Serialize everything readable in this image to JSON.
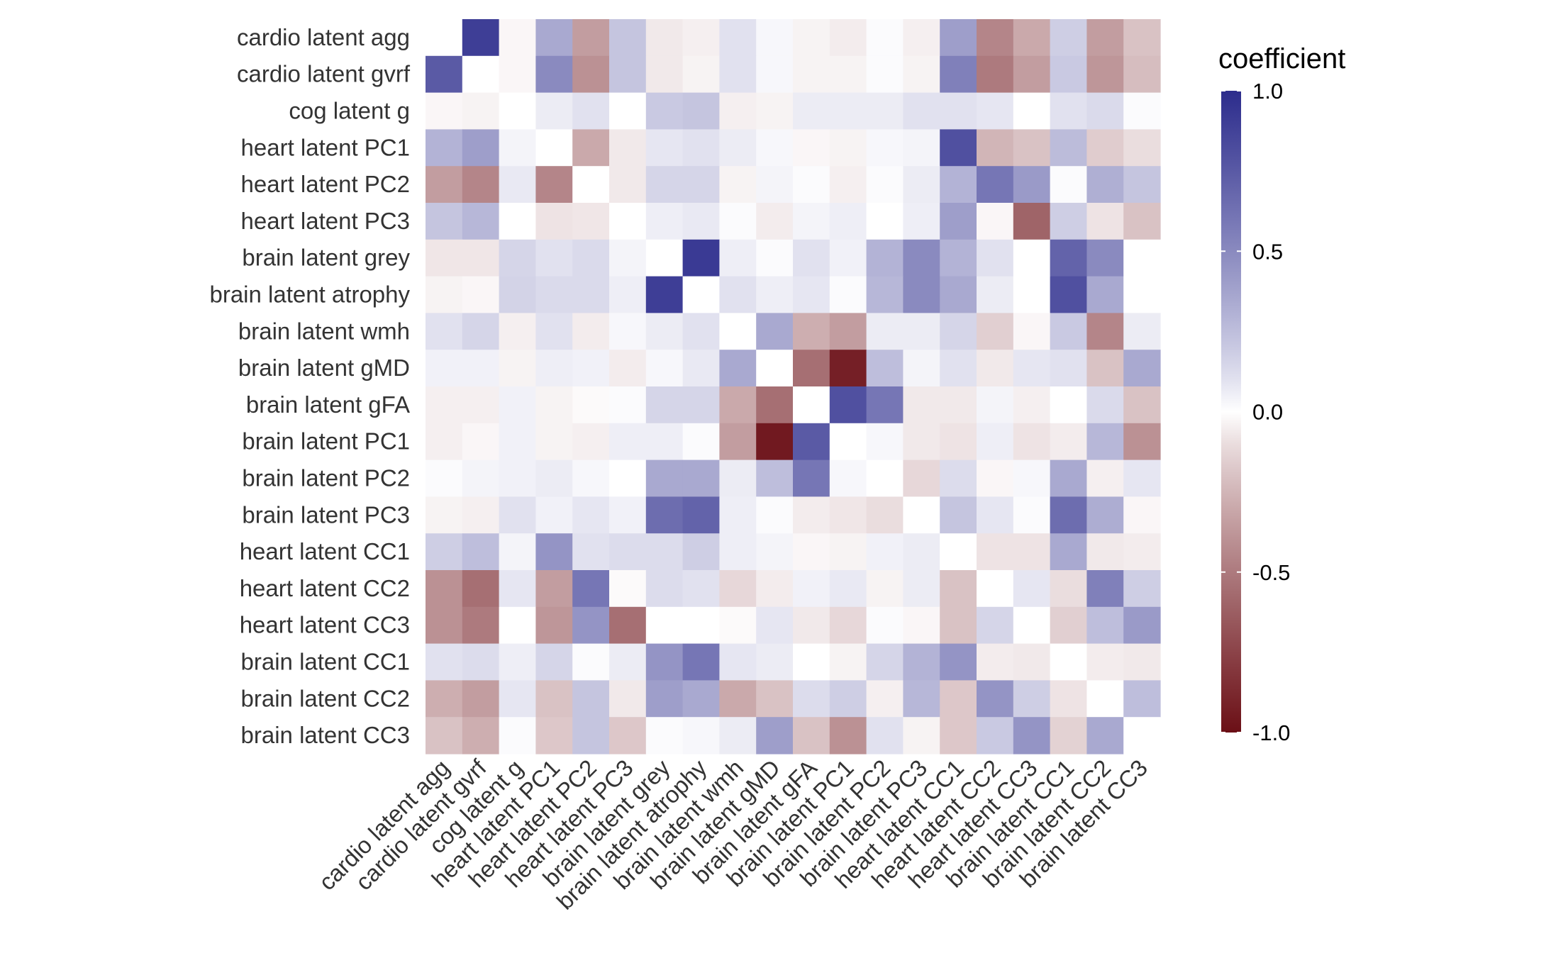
{
  "chart_data": {
    "type": "heatmap",
    "title": "",
    "xlabel": "",
    "ylabel": "",
    "labels": [
      "cardio latent agg",
      "cardio latent gvrf",
      "cog latent g",
      "heart latent PC1",
      "heart latent PC2",
      "heart latent PC3",
      "brain latent grey",
      "brain latent atrophy",
      "brain latent wmh",
      "brain latent gMD",
      "brain latent gFA",
      "brain latent PC1",
      "brain latent PC2",
      "brain latent PC3",
      "heart latent CC1",
      "heart latent CC2",
      "heart latent CC3",
      "brain latent CC1",
      "brain latent CC2",
      "brain latent CC3"
    ],
    "values": [
      [
        0,
        0.9,
        -0.02,
        0.35,
        -0.35,
        0.22,
        -0.06,
        -0.04,
        0.1,
        0.02,
        -0.03,
        -0.05,
        0.01,
        -0.04,
        0.4,
        -0.45,
        -0.3,
        0.18,
        -0.35,
        -0.2
      ],
      [
        0.75,
        0,
        -0.02,
        0.5,
        -0.4,
        0.22,
        -0.06,
        -0.03,
        0.1,
        0.02,
        -0.03,
        -0.03,
        0.01,
        -0.03,
        0.55,
        -0.5,
        -0.35,
        0.2,
        -0.38,
        -0.22
      ],
      [
        -0.02,
        -0.03,
        0,
        0.06,
        0.1,
        0,
        0.2,
        0.22,
        -0.04,
        -0.03,
        0.06,
        0.06,
        0.06,
        0.1,
        0.1,
        0.08,
        0,
        0.1,
        0.13,
        0.01
      ],
      [
        0.3,
        0.4,
        0.03,
        0,
        -0.3,
        -0.06,
        0.08,
        0.1,
        0.06,
        0.02,
        -0.02,
        -0.03,
        0.02,
        0.03,
        0.8,
        -0.25,
        -0.2,
        0.26,
        -0.16,
        -0.1
      ],
      [
        -0.35,
        -0.45,
        0.07,
        -0.45,
        0,
        -0.06,
        0.15,
        0.15,
        -0.03,
        0.03,
        0.01,
        -0.04,
        0.01,
        0.06,
        0.3,
        0.6,
        0.42,
        0.01,
        0.32,
        0.22
      ],
      [
        0.22,
        0.28,
        0,
        -0.08,
        -0.07,
        0,
        0.05,
        0.07,
        0.01,
        -0.05,
        0.03,
        0.05,
        0,
        0.05,
        0.4,
        -0.02,
        -0.6,
        0.18,
        -0.08,
        -0.2
      ],
      [
        -0.07,
        -0.07,
        0.15,
        0.1,
        0.13,
        0.03,
        0,
        0.92,
        0.05,
        0.01,
        0.1,
        0.04,
        0.3,
        0.5,
        0.3,
        0.1,
        0,
        0.7,
        0.5,
        0
      ],
      [
        -0.03,
        -0.02,
        0.16,
        0.13,
        0.13,
        0.05,
        0.9,
        0,
        0.1,
        0.05,
        0.08,
        0.01,
        0.28,
        0.5,
        0.35,
        0.06,
        0,
        0.8,
        0.35,
        0
      ],
      [
        0.1,
        0.15,
        -0.04,
        0.1,
        -0.05,
        0.02,
        0.06,
        0.1,
        0,
        0.35,
        -0.28,
        -0.35,
        0.06,
        0.06,
        0.15,
        -0.15,
        -0.02,
        0.2,
        -0.45,
        0.06
      ],
      [
        0.04,
        0.04,
        -0.03,
        0.05,
        0.04,
        -0.05,
        0.02,
        0.07,
        0.35,
        0,
        -0.55,
        -0.92,
        0.25,
        0.03,
        0.1,
        -0.06,
        0.08,
        0.1,
        -0.2,
        0.35
      ],
      [
        -0.04,
        -0.04,
        0.04,
        -0.03,
        -0.01,
        0.01,
        0.15,
        0.15,
        -0.3,
        -0.55,
        0,
        0.8,
        0.6,
        -0.06,
        -0.06,
        0.03,
        -0.04,
        0,
        0.13,
        -0.2
      ],
      [
        -0.04,
        -0.02,
        0.04,
        -0.03,
        -0.04,
        0.05,
        0.05,
        0.01,
        -0.35,
        -0.95,
        0.75,
        0,
        0.02,
        -0.06,
        -0.08,
        0.05,
        -0.08,
        -0.05,
        0.28,
        -0.4
      ],
      [
        0.01,
        0.03,
        0.04,
        0.06,
        0.02,
        0,
        0.35,
        0.35,
        0.06,
        0.25,
        0.6,
        0.02,
        0,
        -0.12,
        0.12,
        -0.02,
        0.02,
        0.35,
        -0.04,
        0.08
      ],
      [
        -0.03,
        -0.04,
        0.1,
        0.04,
        0.08,
        0.04,
        0.65,
        0.7,
        0.05,
        0.01,
        -0.05,
        -0.07,
        -0.1,
        0,
        0.22,
        0.08,
        0.01,
        0.65,
        0.33,
        -0.02
      ],
      [
        0.18,
        0.25,
        0.03,
        0.45,
        0.1,
        0.12,
        0.12,
        0.18,
        0.05,
        0.03,
        -0.02,
        -0.03,
        0.04,
        0.06,
        0,
        -0.08,
        -0.08,
        0.35,
        -0.06,
        -0.05
      ],
      [
        -0.4,
        -0.55,
        0.08,
        -0.35,
        0.6,
        -0.01,
        0.12,
        0.1,
        -0.12,
        -0.05,
        0.04,
        0.07,
        -0.03,
        0.06,
        -0.2,
        0,
        0.08,
        -0.1,
        0.55,
        0.18
      ],
      [
        -0.4,
        -0.5,
        0,
        -0.38,
        0.45,
        -0.55,
        0,
        0,
        -0.01,
        0.08,
        -0.06,
        -0.12,
        0.01,
        -0.02,
        -0.2,
        0.15,
        0,
        -0.15,
        0.25,
        0.42
      ],
      [
        0.1,
        0.12,
        0.05,
        0.15,
        0.01,
        0.06,
        0.45,
        0.6,
        0.08,
        0.06,
        0,
        -0.03,
        0.15,
        0.3,
        0.45,
        -0.05,
        -0.06,
        0,
        -0.05,
        -0.06
      ],
      [
        -0.28,
        -0.35,
        0.08,
        -0.2,
        0.22,
        -0.06,
        0.4,
        0.35,
        -0.3,
        -0.2,
        0.12,
        0.18,
        -0.04,
        0.28,
        -0.18,
        0.45,
        0.18,
        -0.08,
        0,
        0.25
      ],
      [
        -0.2,
        -0.28,
        0.01,
        -0.18,
        0.22,
        -0.18,
        0.01,
        0.02,
        0.06,
        0.4,
        -0.2,
        -0.4,
        0.1,
        -0.03,
        -0.18,
        0.2,
        0.45,
        -0.14,
        0.35,
        0
      ]
    ],
    "legend": {
      "title": "coefficient",
      "range": [
        -1.0,
        1.0
      ],
      "ticks": [
        1.0,
        0.5,
        0.0,
        -0.5,
        -1.0
      ],
      "tick_labels": [
        "1.0",
        "0.5",
        "0.0",
        "-0.5",
        "-1.0"
      ],
      "placement": "right"
    },
    "colors": {
      "low": "#6b0f16",
      "mid": "#ffffff",
      "high": "#2c2c8c"
    },
    "grid": false
  }
}
